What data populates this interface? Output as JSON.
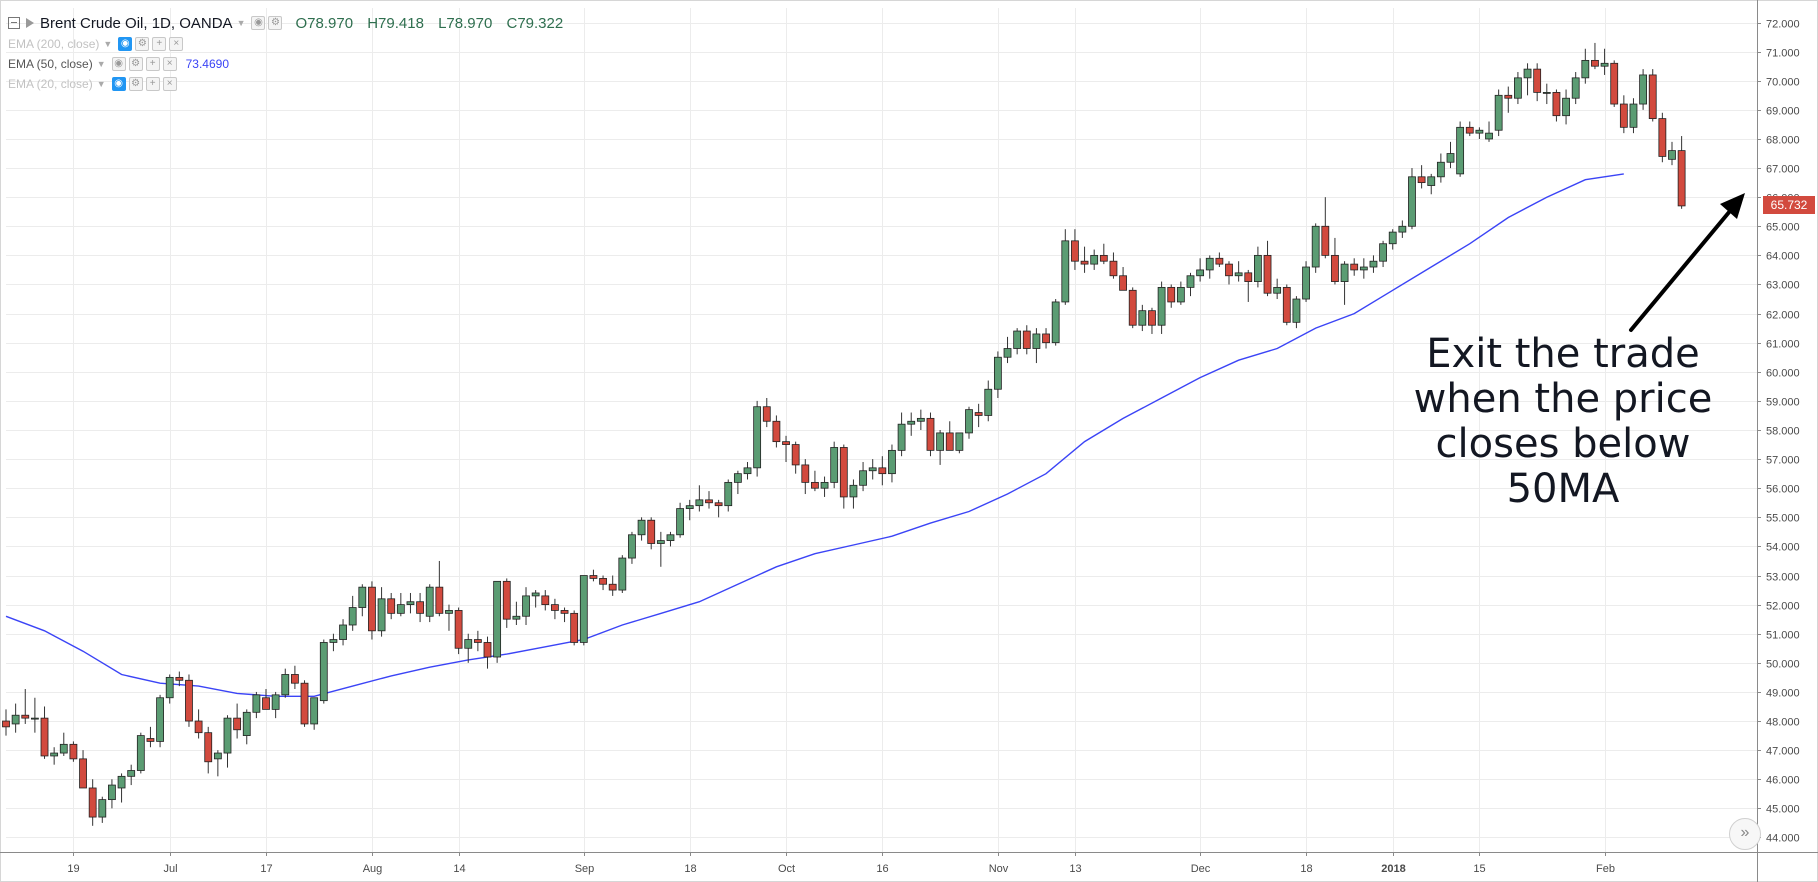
{
  "legend": {
    "symbol": "Brent Crude Oil, 1D, OANDA",
    "open": "O78.970",
    "high": "H79.418",
    "low": "L78.970",
    "close": "C79.322",
    "ema200_label": "EMA (200, close)",
    "ema50_label": "EMA (50, close)",
    "ema50_value": "73.4690",
    "ema20_label": "EMA (20, close)"
  },
  "annotation": {
    "line1": "Exit the trade",
    "line2": "when the price",
    "line3": "closes below 50MA"
  },
  "last_price_label": "65.732",
  "scroll_icon": "»",
  "colors": {
    "up": "#5b9c73",
    "down": "#d24a3e",
    "ema": "#3b44f6",
    "grid": "#ececec",
    "price_tag": "#d24a3e"
  },
  "chart_data": {
    "type": "candlestick",
    "title": "Brent Crude Oil, 1D, OANDA",
    "ylim": [
      43.5,
      72.5
    ],
    "y_ticks": [
      "44.000",
      "45.000",
      "46.000",
      "47.000",
      "48.000",
      "49.000",
      "50.000",
      "51.000",
      "52.000",
      "53.000",
      "54.000",
      "55.000",
      "56.000",
      "57.000",
      "58.000",
      "59.000",
      "60.000",
      "61.000",
      "62.000",
      "63.000",
      "64.000",
      "65.000",
      "66.000",
      "67.000",
      "68.000",
      "69.000",
      "70.000",
      "71.000",
      "72.000"
    ],
    "x_ticks": [
      {
        "label": "19",
        "index": 7
      },
      {
        "label": "Jul",
        "index": 17
      },
      {
        "label": "17",
        "index": 27
      },
      {
        "label": "Aug",
        "index": 38
      },
      {
        "label": "14",
        "index": 47
      },
      {
        "label": "Sep",
        "index": 60
      },
      {
        "label": "18",
        "index": 71
      },
      {
        "label": "Oct",
        "index": 81
      },
      {
        "label": "16",
        "index": 91
      },
      {
        "label": "Nov",
        "index": 103
      },
      {
        "label": "13",
        "index": 111
      },
      {
        "label": "Dec",
        "index": 124
      },
      {
        "label": "18",
        "index": 135
      },
      {
        "label": "2018",
        "index": 144,
        "bold": true
      },
      {
        "label": "15",
        "index": 153
      },
      {
        "label": "Feb",
        "index": 166
      }
    ],
    "candles": [
      [
        48.0,
        48.4,
        47.5,
        47.8
      ],
      [
        47.9,
        48.6,
        47.6,
        48.2
      ],
      [
        48.2,
        49.1,
        47.9,
        48.1
      ],
      [
        48.1,
        48.8,
        47.6,
        48.1
      ],
      [
        48.1,
        48.5,
        46.7,
        46.8
      ],
      [
        46.8,
        47.1,
        46.5,
        46.9
      ],
      [
        46.9,
        47.6,
        46.8,
        47.2
      ],
      [
        47.2,
        47.3,
        46.6,
        46.7
      ],
      [
        46.7,
        47.0,
        45.7,
        45.7
      ],
      [
        45.7,
        46.0,
        44.4,
        44.7
      ],
      [
        44.7,
        45.4,
        44.5,
        45.3
      ],
      [
        45.3,
        46.0,
        45.0,
        45.8
      ],
      [
        45.7,
        46.2,
        45.2,
        46.1
      ],
      [
        46.1,
        46.5,
        45.8,
        46.3
      ],
      [
        46.3,
        47.6,
        46.2,
        47.5
      ],
      [
        47.4,
        47.8,
        47.1,
        47.3
      ],
      [
        47.3,
        48.9,
        47.1,
        48.8
      ],
      [
        48.8,
        49.6,
        48.6,
        49.5
      ],
      [
        49.5,
        49.7,
        49.2,
        49.4
      ],
      [
        49.4,
        49.6,
        47.8,
        48.0
      ],
      [
        48.0,
        48.4,
        47.4,
        47.6
      ],
      [
        47.6,
        47.8,
        46.2,
        46.6
      ],
      [
        46.7,
        47.0,
        46.1,
        46.9
      ],
      [
        46.9,
        48.2,
        46.4,
        48.1
      ],
      [
        48.1,
        48.6,
        47.4,
        47.7
      ],
      [
        47.5,
        48.4,
        47.2,
        48.3
      ],
      [
        48.3,
        49.0,
        48.1,
        48.9
      ],
      [
        48.8,
        49.1,
        48.4,
        48.4
      ],
      [
        48.4,
        49.0,
        48.1,
        48.9
      ],
      [
        48.9,
        49.8,
        48.8,
        49.6
      ],
      [
        49.6,
        49.9,
        49.1,
        49.3
      ],
      [
        49.3,
        49.4,
        47.8,
        47.9
      ],
      [
        47.9,
        48.8,
        47.7,
        48.8
      ],
      [
        48.7,
        50.8,
        48.6,
        50.7
      ],
      [
        50.7,
        51.0,
        50.4,
        50.8
      ],
      [
        50.8,
        51.5,
        50.6,
        51.3
      ],
      [
        51.3,
        52.3,
        51.1,
        51.9
      ],
      [
        51.9,
        52.7,
        51.6,
        52.6
      ],
      [
        52.6,
        52.8,
        50.8,
        51.1
      ],
      [
        51.1,
        52.6,
        50.9,
        52.2
      ],
      [
        52.2,
        52.4,
        51.5,
        51.7
      ],
      [
        51.7,
        52.4,
        51.6,
        52.0
      ],
      [
        52.0,
        52.4,
        51.7,
        52.1
      ],
      [
        52.1,
        52.4,
        51.4,
        51.7
      ],
      [
        51.6,
        52.7,
        51.4,
        52.6
      ],
      [
        52.6,
        53.5,
        51.6,
        51.7
      ],
      [
        51.7,
        52.0,
        51.1,
        51.8
      ],
      [
        51.8,
        51.9,
        50.3,
        50.5
      ],
      [
        50.5,
        51.0,
        50.0,
        50.8
      ],
      [
        50.8,
        51.1,
        50.4,
        50.7
      ],
      [
        50.7,
        50.9,
        49.8,
        50.2
      ],
      [
        50.2,
        52.8,
        50.0,
        52.8
      ],
      [
        52.8,
        52.9,
        51.2,
        51.5
      ],
      [
        51.5,
        52.1,
        51.3,
        51.6
      ],
      [
        51.6,
        52.6,
        51.3,
        52.3
      ],
      [
        52.3,
        52.5,
        51.9,
        52.4
      ],
      [
        52.3,
        52.5,
        51.8,
        52.0
      ],
      [
        52.0,
        52.2,
        51.5,
        51.8
      ],
      [
        51.8,
        51.9,
        51.4,
        51.7
      ],
      [
        51.7,
        51.8,
        50.6,
        50.7
      ],
      [
        50.7,
        53.0,
        50.6,
        53.0
      ],
      [
        53.0,
        53.2,
        52.8,
        52.9
      ],
      [
        52.9,
        53.0,
        52.5,
        52.7
      ],
      [
        52.7,
        53.0,
        52.3,
        52.5
      ],
      [
        52.5,
        53.7,
        52.4,
        53.6
      ],
      [
        53.6,
        54.5,
        53.4,
        54.4
      ],
      [
        54.4,
        55.0,
        54.2,
        54.9
      ],
      [
        54.9,
        55.0,
        53.9,
        54.1
      ],
      [
        54.1,
        54.5,
        53.3,
        54.2
      ],
      [
        54.2,
        54.5,
        54.0,
        54.4
      ],
      [
        54.4,
        55.5,
        54.3,
        55.3
      ],
      [
        55.3,
        55.6,
        54.9,
        55.4
      ],
      [
        55.4,
        56.1,
        55.2,
        55.6
      ],
      [
        55.6,
        55.9,
        55.3,
        55.5
      ],
      [
        55.5,
        55.6,
        55.0,
        55.4
      ],
      [
        55.4,
        56.3,
        55.2,
        56.2
      ],
      [
        56.2,
        56.6,
        55.8,
        56.5
      ],
      [
        56.5,
        56.9,
        56.3,
        56.7
      ],
      [
        56.7,
        59.0,
        56.4,
        58.8
      ],
      [
        58.8,
        59.1,
        58.1,
        58.3
      ],
      [
        58.3,
        58.5,
        57.4,
        57.6
      ],
      [
        57.6,
        57.8,
        56.9,
        57.5
      ],
      [
        57.5,
        57.6,
        56.5,
        56.8
      ],
      [
        56.8,
        57.0,
        55.8,
        56.2
      ],
      [
        56.2,
        56.6,
        55.9,
        56.0
      ],
      [
        56.0,
        56.4,
        55.7,
        56.2
      ],
      [
        56.2,
        57.6,
        56.0,
        57.4
      ],
      [
        57.4,
        57.5,
        55.3,
        55.7
      ],
      [
        55.7,
        56.3,
        55.3,
        56.1
      ],
      [
        56.1,
        56.9,
        55.9,
        56.6
      ],
      [
        56.6,
        57.0,
        56.3,
        56.7
      ],
      [
        56.7,
        57.1,
        56.1,
        56.5
      ],
      [
        56.5,
        57.5,
        56.2,
        57.3
      ],
      [
        57.3,
        58.6,
        57.1,
        58.2
      ],
      [
        58.2,
        58.6,
        57.8,
        58.3
      ],
      [
        58.3,
        58.7,
        58.0,
        58.4
      ],
      [
        58.4,
        58.6,
        57.1,
        57.3
      ],
      [
        57.3,
        58.0,
        56.8,
        57.9
      ],
      [
        57.9,
        58.3,
        57.3,
        57.3
      ],
      [
        57.3,
        57.9,
        57.2,
        57.9
      ],
      [
        57.9,
        58.8,
        57.7,
        58.7
      ],
      [
        58.6,
        58.9,
        58.1,
        58.5
      ],
      [
        58.5,
        59.7,
        58.3,
        59.4
      ],
      [
        59.4,
        60.7,
        59.1,
        60.5
      ],
      [
        60.5,
        61.2,
        60.3,
        60.8
      ],
      [
        60.8,
        61.5,
        60.6,
        61.4
      ],
      [
        61.4,
        61.6,
        60.6,
        60.8
      ],
      [
        60.8,
        61.5,
        60.3,
        61.3
      ],
      [
        61.3,
        61.5,
        60.8,
        61.0
      ],
      [
        61.0,
        62.5,
        60.9,
        62.4
      ],
      [
        62.4,
        64.9,
        62.3,
        64.5
      ],
      [
        64.5,
        64.9,
        63.5,
        63.8
      ],
      [
        63.8,
        64.3,
        63.4,
        63.7
      ],
      [
        63.7,
        64.2,
        63.5,
        64.0
      ],
      [
        64.0,
        64.4,
        63.7,
        63.8
      ],
      [
        63.8,
        64.1,
        63.2,
        63.3
      ],
      [
        63.3,
        63.6,
        62.8,
        62.8
      ],
      [
        62.8,
        62.9,
        61.5,
        61.6
      ],
      [
        61.6,
        62.3,
        61.4,
        62.1
      ],
      [
        62.1,
        62.2,
        61.3,
        61.6
      ],
      [
        61.6,
        63.1,
        61.3,
        62.9
      ],
      [
        62.9,
        63.0,
        62.2,
        62.4
      ],
      [
        62.4,
        63.1,
        62.3,
        62.9
      ],
      [
        62.9,
        63.4,
        62.6,
        63.3
      ],
      [
        63.3,
        63.9,
        63.1,
        63.5
      ],
      [
        63.5,
        64.0,
        63.2,
        63.9
      ],
      [
        63.9,
        64.1,
        63.6,
        63.7
      ],
      [
        63.7,
        63.8,
        63.0,
        63.3
      ],
      [
        63.3,
        63.8,
        63.1,
        63.4
      ],
      [
        63.4,
        63.5,
        62.4,
        63.1
      ],
      [
        63.1,
        64.3,
        62.9,
        64.0
      ],
      [
        64.0,
        64.5,
        62.6,
        62.7
      ],
      [
        62.7,
        63.2,
        62.5,
        62.9
      ],
      [
        62.9,
        63.0,
        61.6,
        61.7
      ],
      [
        61.7,
        62.6,
        61.5,
        62.5
      ],
      [
        62.5,
        63.8,
        62.4,
        63.6
      ],
      [
        63.6,
        65.1,
        63.4,
        65.0
      ],
      [
        65.0,
        66.0,
        63.9,
        64.0
      ],
      [
        64.0,
        64.6,
        63.0,
        63.1
      ],
      [
        63.1,
        63.8,
        62.3,
        63.7
      ],
      [
        63.7,
        63.9,
        63.3,
        63.5
      ],
      [
        63.5,
        63.9,
        63.2,
        63.6
      ],
      [
        63.6,
        64.0,
        63.4,
        63.8
      ],
      [
        63.8,
        64.5,
        63.6,
        64.4
      ],
      [
        64.4,
        64.9,
        64.2,
        64.8
      ],
      [
        64.8,
        65.2,
        64.6,
        65.0
      ],
      [
        65.0,
        67.0,
        64.9,
        66.7
      ],
      [
        66.7,
        67.1,
        66.3,
        66.5
      ],
      [
        66.4,
        66.8,
        66.1,
        66.7
      ],
      [
        66.7,
        67.5,
        66.5,
        67.2
      ],
      [
        67.2,
        67.9,
        67.0,
        67.5
      ],
      [
        66.8,
        68.6,
        66.7,
        68.4
      ],
      [
        68.4,
        68.6,
        68.1,
        68.2
      ],
      [
        68.2,
        68.4,
        68.0,
        68.3
      ],
      [
        68.0,
        68.6,
        67.9,
        68.2
      ],
      [
        68.3,
        69.7,
        68.1,
        69.5
      ],
      [
        69.5,
        69.8,
        68.9,
        69.4
      ],
      [
        69.4,
        70.3,
        69.2,
        70.1
      ],
      [
        70.1,
        70.6,
        69.5,
        70.4
      ],
      [
        70.4,
        70.6,
        69.3,
        69.6
      ],
      [
        69.6,
        69.9,
        69.2,
        69.6
      ],
      [
        69.6,
        69.7,
        68.6,
        68.8
      ],
      [
        68.8,
        69.7,
        68.5,
        69.4
      ],
      [
        69.4,
        70.3,
        69.2,
        70.1
      ],
      [
        70.1,
        71.1,
        69.9,
        70.7
      ],
      [
        70.7,
        71.3,
        70.4,
        70.5
      ],
      [
        70.5,
        71.1,
        70.2,
        70.6
      ],
      [
        70.6,
        70.7,
        69.1,
        69.2
      ],
      [
        69.2,
        69.5,
        68.2,
        68.4
      ],
      [
        68.4,
        69.4,
        68.2,
        69.2
      ],
      [
        69.2,
        70.4,
        69.0,
        70.2
      ],
      [
        70.2,
        70.4,
        68.6,
        68.7
      ],
      [
        68.7,
        68.9,
        67.2,
        67.4
      ],
      [
        67.3,
        67.9,
        67.1,
        67.6
      ],
      [
        67.6,
        68.1,
        65.6,
        65.7
      ]
    ],
    "ema50": [
      [
        0,
        51.6
      ],
      [
        4,
        51.1
      ],
      [
        8,
        50.4
      ],
      [
        12,
        49.6
      ],
      [
        16,
        49.3
      ],
      [
        20,
        49.2
      ],
      [
        24,
        48.95
      ],
      [
        28,
        48.85
      ],
      [
        32,
        48.85
      ],
      [
        36,
        49.2
      ],
      [
        40,
        49.55
      ],
      [
        44,
        49.85
      ],
      [
        48,
        50.1
      ],
      [
        52,
        50.3
      ],
      [
        56,
        50.55
      ],
      [
        60,
        50.8
      ],
      [
        64,
        51.3
      ],
      [
        68,
        51.7
      ],
      [
        72,
        52.1
      ],
      [
        76,
        52.7
      ],
      [
        80,
        53.3
      ],
      [
        84,
        53.75
      ],
      [
        88,
        54.05
      ],
      [
        92,
        54.35
      ],
      [
        96,
        54.8
      ],
      [
        100,
        55.2
      ],
      [
        104,
        55.8
      ],
      [
        108,
        56.5
      ],
      [
        112,
        57.6
      ],
      [
        116,
        58.4
      ],
      [
        120,
        59.1
      ],
      [
        124,
        59.8
      ],
      [
        128,
        60.4
      ],
      [
        132,
        60.8
      ],
      [
        136,
        61.5
      ],
      [
        140,
        62.0
      ],
      [
        144,
        62.8
      ],
      [
        148,
        63.6
      ],
      [
        152,
        64.4
      ],
      [
        156,
        65.3
      ],
      [
        160,
        66.0
      ],
      [
        164,
        66.6
      ],
      [
        168,
        66.8
      ]
    ]
  }
}
